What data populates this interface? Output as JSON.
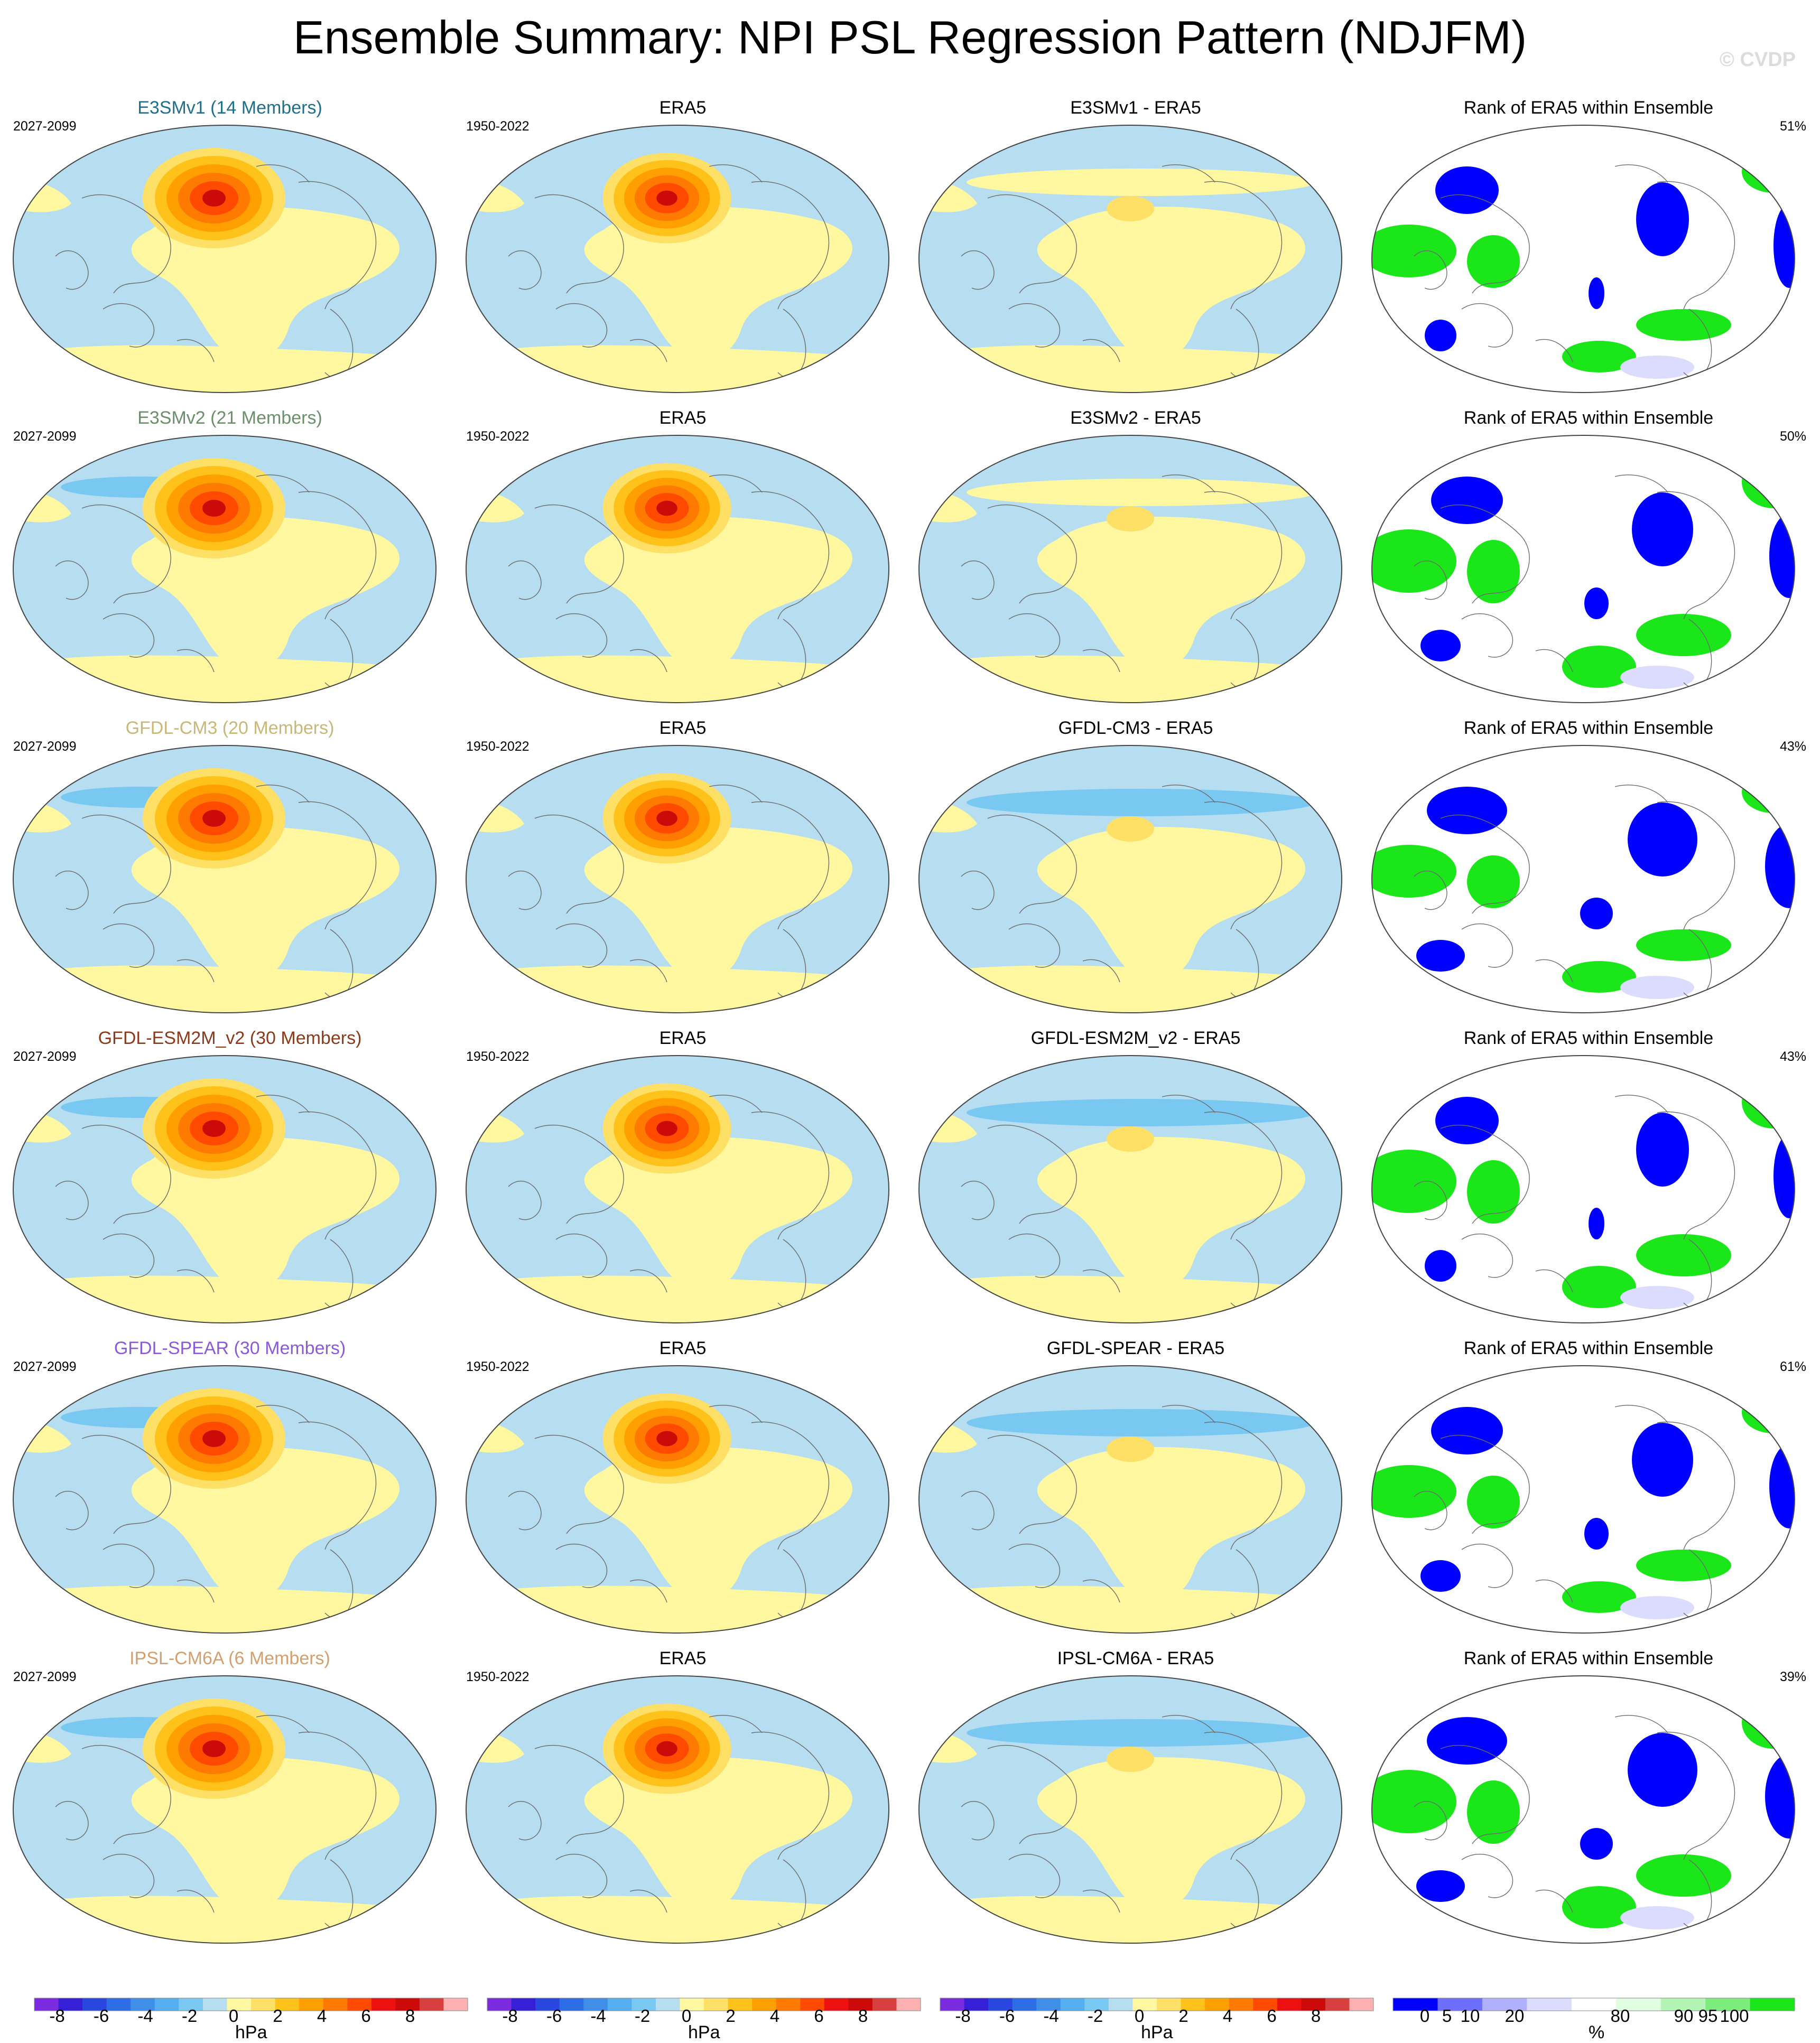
{
  "title": "Ensemble Summary: NPI PSL Regression Pattern (NDJFM)",
  "watermark": "© CVDP",
  "columns": [
    "ensemble",
    "observed",
    "difference",
    "rank"
  ],
  "rows": [
    {
      "model": "E3SMv1 (14 Members)",
      "model_color": "#1f6f8b",
      "diff": "E3SMv1 - ERA5",
      "rank_pct": "51%",
      "model_years": "2027-2099",
      "obs": "ERA5",
      "obs_years": "1950-2022",
      "rank_title": "Rank of ERA5 within Ensemble"
    },
    {
      "model": "E3SMv2 (21 Members)",
      "model_color": "#6a8f6a",
      "diff": "E3SMv2 - ERA5",
      "rank_pct": "50%",
      "model_years": "2027-2099",
      "obs": "ERA5",
      "obs_years": "1950-2022",
      "rank_title": "Rank of ERA5 within Ensemble"
    },
    {
      "model": "GFDL-CM3 (20 Members)",
      "model_color": "#c8b878",
      "diff": "GFDL-CM3 - ERA5",
      "rank_pct": "43%",
      "model_years": "2027-2099",
      "obs": "ERA5",
      "obs_years": "1950-2022",
      "rank_title": "Rank of ERA5 within Ensemble"
    },
    {
      "model": "GFDL-ESM2M_v2 (30 Members)",
      "model_color": "#8b3a1a",
      "diff": "GFDL-ESM2M_v2 - ERA5",
      "rank_pct": "43%",
      "model_years": "2027-2099",
      "obs": "ERA5",
      "obs_years": "1950-2022",
      "rank_title": "Rank of ERA5 within Ensemble"
    },
    {
      "model": "GFDL-SPEAR (30 Members)",
      "model_color": "#8a5bd6",
      "diff": "GFDL-SPEAR - ERA5",
      "rank_pct": "61%",
      "model_years": "2027-2099",
      "obs": "ERA5",
      "obs_years": "1950-2022",
      "rank_title": "Rank of ERA5 within Ensemble"
    },
    {
      "model": "IPSL-CM6A (6 Members)",
      "model_color": "#d2a070",
      "diff": "IPSL-CM6A - ERA5",
      "rank_pct": "39%",
      "model_years": "2027-2099",
      "obs": "ERA5",
      "obs_years": "1950-2022",
      "rank_title": "Rank of ERA5 within Ensemble"
    }
  ],
  "chart_data": {
    "type": "heatmap",
    "projection": "Robinson (Pacific-centred)",
    "field": "PSL regression onto NPI",
    "colorbars": [
      {
        "unit": "hPa",
        "tick_labels": [
          "-8",
          "-6",
          "-4",
          "-2",
          "0",
          "2",
          "4",
          "6",
          "8"
        ],
        "colors": [
          "#7b2be0",
          "#3520d8",
          "#2a48e0",
          "#2d6ee6",
          "#3f8fe8",
          "#55aef0",
          "#79c8f2",
          "#b7def0",
          "#fff8a0",
          "#ffe066",
          "#ffc21a",
          "#ffa000",
          "#ff7a00",
          "#ff4a00",
          "#ee1010",
          "#cc0a0a",
          "#d84040",
          "#ffb0b0"
        ]
      },
      {
        "unit": "hPa",
        "tick_labels": [
          "-8",
          "-6",
          "-4",
          "-2",
          "0",
          "2",
          "4",
          "6",
          "8"
        ]
      },
      {
        "unit": "hPa",
        "tick_labels": [
          "-8",
          "-6",
          "-4",
          "-2",
          "0",
          "2",
          "4",
          "6",
          "8"
        ]
      },
      {
        "unit": "%",
        "tick_labels": [
          "0",
          "5",
          "10",
          "20",
          "80",
          "90",
          "95",
          "100"
        ],
        "colors": [
          "#0000ff",
          "#6f6fff",
          "#b0b0ff",
          "#dcdcff",
          "#ffffff",
          "#e0ffe0",
          "#b4f4b4",
          "#7ced7c",
          "#1ae61a"
        ]
      }
    ],
    "colors": {
      "negative_weak": "#b7def0",
      "positive_weak": "#fff8a0",
      "rank_low": "#0000ff",
      "rank_high": "#1ae61a"
    }
  }
}
